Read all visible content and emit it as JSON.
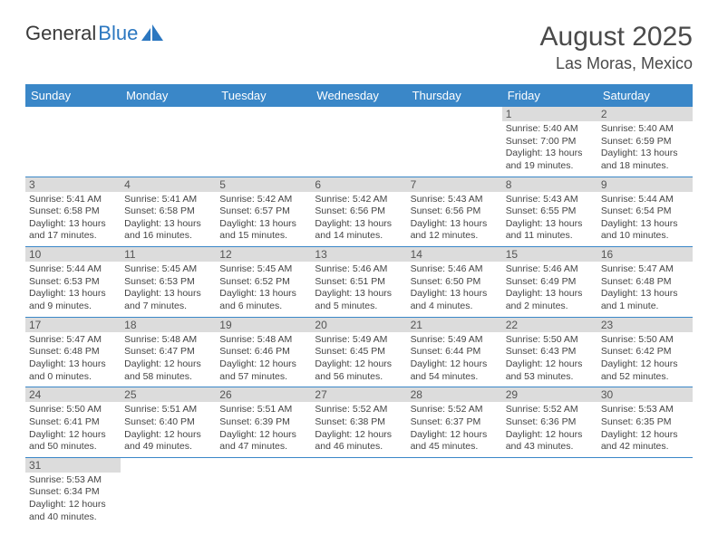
{
  "logo": {
    "text1": "General",
    "text2": "Blue"
  },
  "title": "August 2025",
  "location": "Las Moras, Mexico",
  "colors": {
    "header_bg": "#3a87c8",
    "header_fg": "#ffffff",
    "daynum_bg": "#dcdcdc",
    "border": "#3a87c8",
    "logo_blue": "#2b77c0"
  },
  "weekdays": [
    "Sunday",
    "Monday",
    "Tuesday",
    "Wednesday",
    "Thursday",
    "Friday",
    "Saturday"
  ],
  "weeks": [
    [
      null,
      null,
      null,
      null,
      null,
      {
        "n": "1",
        "sr": "Sunrise: 5:40 AM",
        "ss": "Sunset: 7:00 PM",
        "dl": "Daylight: 13 hours and 19 minutes."
      },
      {
        "n": "2",
        "sr": "Sunrise: 5:40 AM",
        "ss": "Sunset: 6:59 PM",
        "dl": "Daylight: 13 hours and 18 minutes."
      }
    ],
    [
      {
        "n": "3",
        "sr": "Sunrise: 5:41 AM",
        "ss": "Sunset: 6:58 PM",
        "dl": "Daylight: 13 hours and 17 minutes."
      },
      {
        "n": "4",
        "sr": "Sunrise: 5:41 AM",
        "ss": "Sunset: 6:58 PM",
        "dl": "Daylight: 13 hours and 16 minutes."
      },
      {
        "n": "5",
        "sr": "Sunrise: 5:42 AM",
        "ss": "Sunset: 6:57 PM",
        "dl": "Daylight: 13 hours and 15 minutes."
      },
      {
        "n": "6",
        "sr": "Sunrise: 5:42 AM",
        "ss": "Sunset: 6:56 PM",
        "dl": "Daylight: 13 hours and 14 minutes."
      },
      {
        "n": "7",
        "sr": "Sunrise: 5:43 AM",
        "ss": "Sunset: 6:56 PM",
        "dl": "Daylight: 13 hours and 12 minutes."
      },
      {
        "n": "8",
        "sr": "Sunrise: 5:43 AM",
        "ss": "Sunset: 6:55 PM",
        "dl": "Daylight: 13 hours and 11 minutes."
      },
      {
        "n": "9",
        "sr": "Sunrise: 5:44 AM",
        "ss": "Sunset: 6:54 PM",
        "dl": "Daylight: 13 hours and 10 minutes."
      }
    ],
    [
      {
        "n": "10",
        "sr": "Sunrise: 5:44 AM",
        "ss": "Sunset: 6:53 PM",
        "dl": "Daylight: 13 hours and 9 minutes."
      },
      {
        "n": "11",
        "sr": "Sunrise: 5:45 AM",
        "ss": "Sunset: 6:53 PM",
        "dl": "Daylight: 13 hours and 7 minutes."
      },
      {
        "n": "12",
        "sr": "Sunrise: 5:45 AM",
        "ss": "Sunset: 6:52 PM",
        "dl": "Daylight: 13 hours and 6 minutes."
      },
      {
        "n": "13",
        "sr": "Sunrise: 5:46 AM",
        "ss": "Sunset: 6:51 PM",
        "dl": "Daylight: 13 hours and 5 minutes."
      },
      {
        "n": "14",
        "sr": "Sunrise: 5:46 AM",
        "ss": "Sunset: 6:50 PM",
        "dl": "Daylight: 13 hours and 4 minutes."
      },
      {
        "n": "15",
        "sr": "Sunrise: 5:46 AM",
        "ss": "Sunset: 6:49 PM",
        "dl": "Daylight: 13 hours and 2 minutes."
      },
      {
        "n": "16",
        "sr": "Sunrise: 5:47 AM",
        "ss": "Sunset: 6:48 PM",
        "dl": "Daylight: 13 hours and 1 minute."
      }
    ],
    [
      {
        "n": "17",
        "sr": "Sunrise: 5:47 AM",
        "ss": "Sunset: 6:48 PM",
        "dl": "Daylight: 13 hours and 0 minutes."
      },
      {
        "n": "18",
        "sr": "Sunrise: 5:48 AM",
        "ss": "Sunset: 6:47 PM",
        "dl": "Daylight: 12 hours and 58 minutes."
      },
      {
        "n": "19",
        "sr": "Sunrise: 5:48 AM",
        "ss": "Sunset: 6:46 PM",
        "dl": "Daylight: 12 hours and 57 minutes."
      },
      {
        "n": "20",
        "sr": "Sunrise: 5:49 AM",
        "ss": "Sunset: 6:45 PM",
        "dl": "Daylight: 12 hours and 56 minutes."
      },
      {
        "n": "21",
        "sr": "Sunrise: 5:49 AM",
        "ss": "Sunset: 6:44 PM",
        "dl": "Daylight: 12 hours and 54 minutes."
      },
      {
        "n": "22",
        "sr": "Sunrise: 5:50 AM",
        "ss": "Sunset: 6:43 PM",
        "dl": "Daylight: 12 hours and 53 minutes."
      },
      {
        "n": "23",
        "sr": "Sunrise: 5:50 AM",
        "ss": "Sunset: 6:42 PM",
        "dl": "Daylight: 12 hours and 52 minutes."
      }
    ],
    [
      {
        "n": "24",
        "sr": "Sunrise: 5:50 AM",
        "ss": "Sunset: 6:41 PM",
        "dl": "Daylight: 12 hours and 50 minutes."
      },
      {
        "n": "25",
        "sr": "Sunrise: 5:51 AM",
        "ss": "Sunset: 6:40 PM",
        "dl": "Daylight: 12 hours and 49 minutes."
      },
      {
        "n": "26",
        "sr": "Sunrise: 5:51 AM",
        "ss": "Sunset: 6:39 PM",
        "dl": "Daylight: 12 hours and 47 minutes."
      },
      {
        "n": "27",
        "sr": "Sunrise: 5:52 AM",
        "ss": "Sunset: 6:38 PM",
        "dl": "Daylight: 12 hours and 46 minutes."
      },
      {
        "n": "28",
        "sr": "Sunrise: 5:52 AM",
        "ss": "Sunset: 6:37 PM",
        "dl": "Daylight: 12 hours and 45 minutes."
      },
      {
        "n": "29",
        "sr": "Sunrise: 5:52 AM",
        "ss": "Sunset: 6:36 PM",
        "dl": "Daylight: 12 hours and 43 minutes."
      },
      {
        "n": "30",
        "sr": "Sunrise: 5:53 AM",
        "ss": "Sunset: 6:35 PM",
        "dl": "Daylight: 12 hours and 42 minutes."
      }
    ],
    [
      {
        "n": "31",
        "sr": "Sunrise: 5:53 AM",
        "ss": "Sunset: 6:34 PM",
        "dl": "Daylight: 12 hours and 40 minutes."
      },
      null,
      null,
      null,
      null,
      null,
      null
    ]
  ]
}
